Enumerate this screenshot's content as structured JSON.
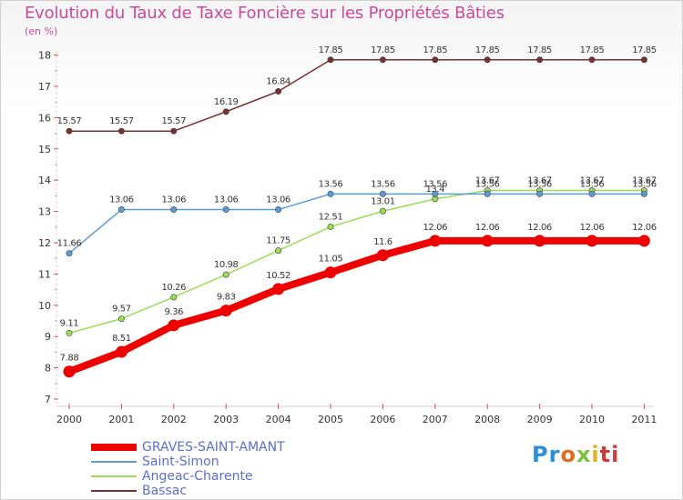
{
  "chart_data": {
    "type": "line",
    "title": "Evolution du Taux de Taxe Foncière sur les Propriétés Bâties",
    "ylabel": "(en %)",
    "xlabel": "",
    "ylim": [
      7,
      18
    ],
    "yticks": [
      7,
      8,
      9,
      10,
      11,
      12,
      13,
      14,
      15,
      16,
      17,
      18
    ],
    "categories": [
      "2000",
      "2001",
      "2002",
      "2003",
      "2004",
      "2005",
      "2006",
      "2007",
      "2008",
      "2009",
      "2010",
      "2011"
    ],
    "series": [
      {
        "name": "GRAVES-SAINT-AMANT",
        "color": "#ee0000",
        "values": [
          7.88,
          8.51,
          9.36,
          9.83,
          10.52,
          11.05,
          11.6,
          12.06,
          12.06,
          12.06,
          12.06,
          12.06
        ],
        "labels": [
          "7.88",
          "8.51",
          "9.36",
          "9.83",
          "10.52",
          "11.05",
          "11.6",
          "12.06",
          "12.06",
          "12.06",
          "12.06",
          "12.06"
        ]
      },
      {
        "name": "Saint-Simon",
        "color": "#5b9bd5",
        "values": [
          11.66,
          13.06,
          13.06,
          13.06,
          13.06,
          13.56,
          13.56,
          13.56,
          13.56,
          13.56,
          13.56,
          13.56
        ],
        "labels": [
          "11.66",
          "13.06",
          "13.06",
          "13.06",
          "13.06",
          "13.56",
          "13.56",
          "13.56",
          "13.56",
          "13.56",
          "13.56",
          "13.56"
        ]
      },
      {
        "name": "Angeac-Charente",
        "color": "#99dd55",
        "values": [
          9.11,
          9.57,
          10.26,
          10.98,
          11.75,
          12.51,
          13.01,
          13.4,
          13.67,
          13.67,
          13.67,
          13.67
        ],
        "labels": [
          "9.11",
          "9.57",
          "10.26",
          "10.98",
          "11.75",
          "12.51",
          "13.01",
          "13.4",
          "13.67",
          "13.67",
          "13.67",
          "13.67"
        ]
      },
      {
        "name": "Bassac",
        "color": "#7a3030",
        "values": [
          15.57,
          15.57,
          15.57,
          16.19,
          16.84,
          17.85,
          17.85,
          17.85,
          17.85,
          17.85,
          17.85,
          17.85
        ],
        "labels": [
          "15.57",
          "15.57",
          "15.57",
          "16.19",
          "16.84",
          "17.85",
          "17.85",
          "17.85",
          "17.85",
          "17.85",
          "17.85",
          "17.85"
        ]
      }
    ],
    "legend": "bottom-left"
  },
  "logo": {
    "letters": [
      "Pr",
      "o",
      "x",
      "i",
      "ti"
    ]
  }
}
